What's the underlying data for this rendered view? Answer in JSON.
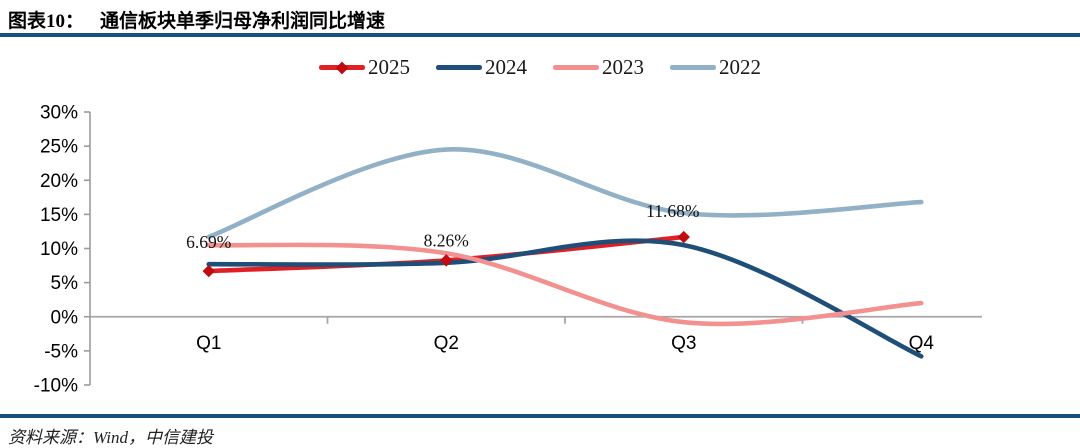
{
  "header": {
    "figure_label": "图表10：",
    "title": "通信板块单季归母净利润同比增速"
  },
  "footer": {
    "source": "资料来源：Wind，中信建投"
  },
  "colors": {
    "rule": "#17517e",
    "zero_line": "#a6a6a6",
    "axis": "#9b9b9b"
  },
  "chart_data": {
    "type": "line",
    "smooth": true,
    "title": "通信板块单季归母净利润同比增速",
    "categories": [
      "Q1",
      "Q2",
      "Q3",
      "Q4"
    ],
    "series": [
      {
        "name": "2025",
        "color": "#e02024",
        "marker": "diamond",
        "marker_color": "#c00b10",
        "values": [
          6.69,
          8.26,
          11.68,
          null
        ],
        "labels": [
          "6.69%",
          "8.26%",
          "11.68%"
        ]
      },
      {
        "name": "2024",
        "color": "#1f4e79",
        "values": [
          7.7,
          7.9,
          10.5,
          -5.8
        ]
      },
      {
        "name": "2023",
        "color": "#f39191",
        "values": [
          10.5,
          9.3,
          -0.8,
          2.0
        ]
      },
      {
        "name": "2022",
        "color": "#92b1c6",
        "values": [
          11.7,
          24.5,
          15.2,
          16.8
        ]
      }
    ],
    "yticks": [
      "30%",
      "25%",
      "20%",
      "15%",
      "10%",
      "5%",
      "0%",
      "-5%",
      "-10%"
    ],
    "ylim": [
      -10,
      30
    ],
    "ytick_step": 5,
    "xlabel": "",
    "ylabel": "",
    "grid": "zero-line-only",
    "legend_position": "top-center"
  }
}
